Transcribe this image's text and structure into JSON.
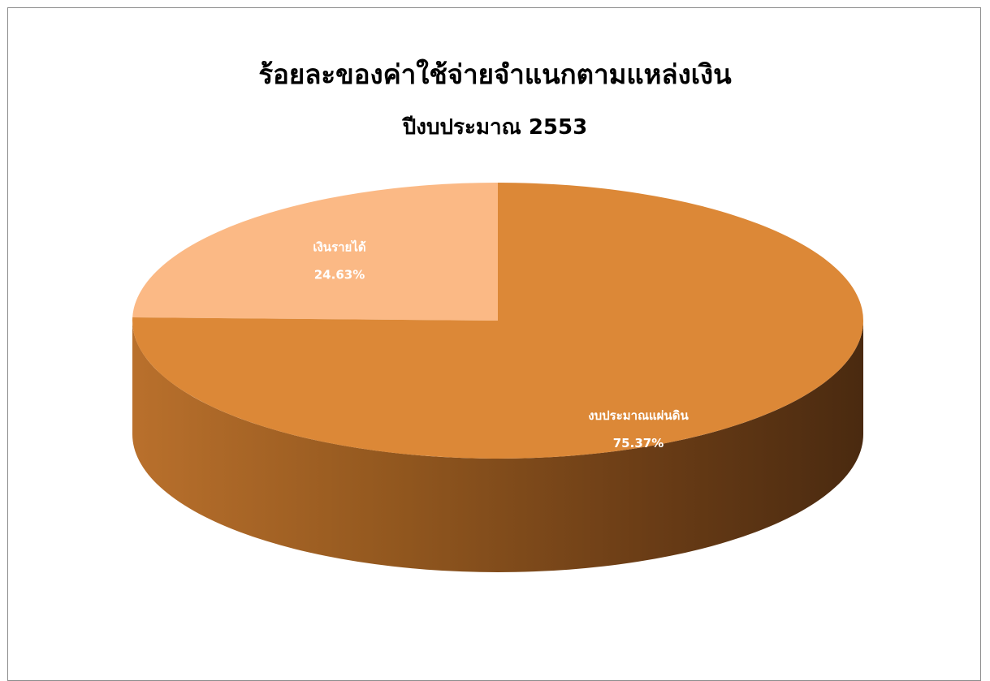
{
  "chart_data": {
    "type": "pie",
    "title": "ร้อยละของค่าใช้จ่ายจำแนกตามแหล่งเงิน",
    "subtitle": "ปีงบประมาณ 2553",
    "slices": [
      {
        "label": "เงินรายได้",
        "value": 24.63,
        "display": "24.63%",
        "color": "#fbb985"
      },
      {
        "label": "งบประมาณแผ่นดิน",
        "value": 75.37,
        "display": "75.37%",
        "color": "#dc8837"
      }
    ],
    "legend": "none",
    "style": "3d"
  }
}
